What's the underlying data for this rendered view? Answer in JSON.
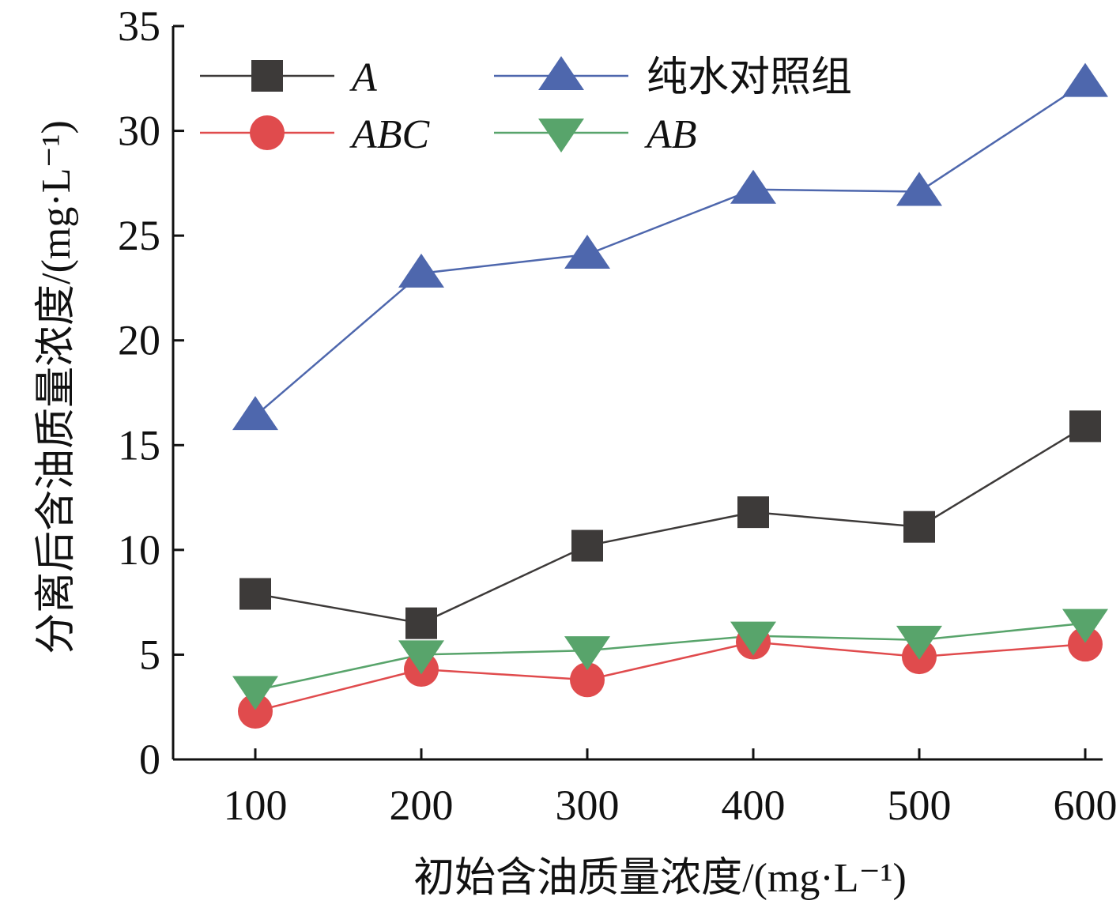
{
  "chart_data": {
    "type": "line",
    "xlabel": "初始含油质量浓度/(mg·L⁻¹)",
    "ylabel": "分离后含油质量浓度/(mg·L⁻¹)",
    "x": [
      100,
      200,
      300,
      400,
      500,
      600
    ],
    "ylim": [
      0,
      35
    ],
    "yticks": [
      0,
      5,
      10,
      15,
      20,
      25,
      30,
      35
    ],
    "grid": false,
    "legend_position": "top-left, two columns",
    "series": [
      {
        "name": "A",
        "italic": true,
        "color": "#3d3a39",
        "marker": "square",
        "values": [
          7.9,
          6.5,
          10.2,
          11.8,
          11.1,
          15.9
        ]
      },
      {
        "name": "纯水对照组",
        "italic": false,
        "color": "#4e67ad",
        "marker": "triangle-up",
        "values": [
          16.4,
          23.2,
          24.1,
          27.2,
          27.1,
          32.3
        ]
      },
      {
        "name": "ABC",
        "italic": true,
        "color": "#e04b4d",
        "marker": "circle",
        "values": [
          2.3,
          4.3,
          3.8,
          5.6,
          4.9,
          5.5
        ]
      },
      {
        "name": "AB",
        "italic": true,
        "color": "#58a46b",
        "marker": "triangle-down",
        "values": [
          3.3,
          5.0,
          5.2,
          5.9,
          5.7,
          6.5
        ]
      }
    ]
  }
}
